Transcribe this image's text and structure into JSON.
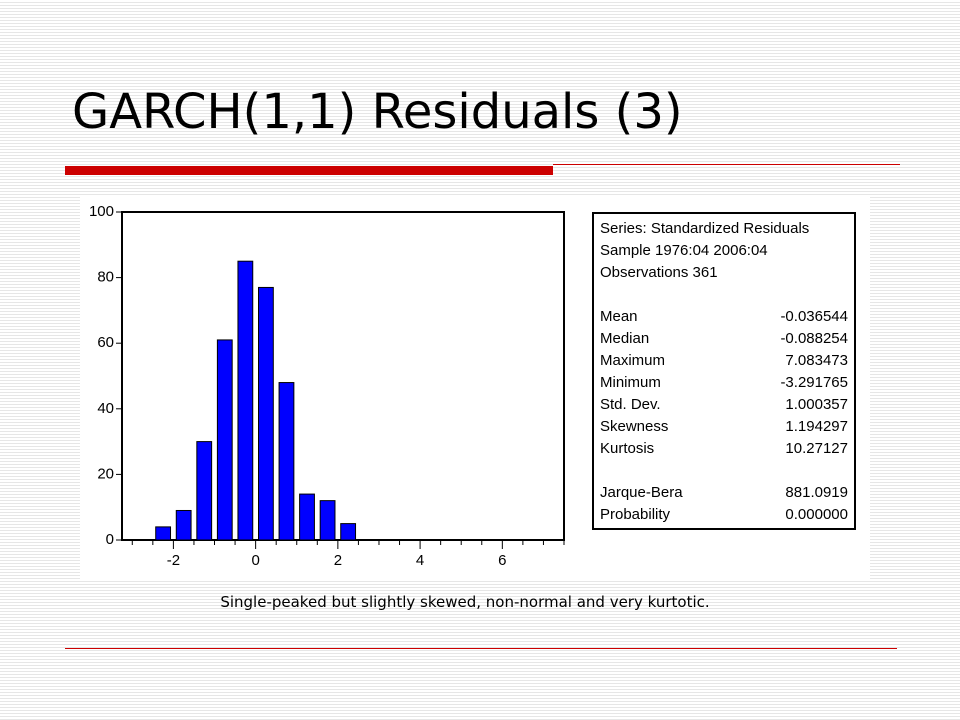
{
  "slide": {
    "title": "GARCH(1,1) Residuals (3)",
    "caption": "Single-peaked but slightly skewed, non-normal and very kurtotic.",
    "accent_color": "#cc0000"
  },
  "chart_data": {
    "type": "bar",
    "title": "",
    "xlabel": "",
    "ylabel": "",
    "bar_color": "#0000ff",
    "bin_width": 0.5,
    "bins": [
      {
        "center": -2.25,
        "value": 4
      },
      {
        "center": -1.75,
        "value": 9
      },
      {
        "center": -1.25,
        "value": 30
      },
      {
        "center": -0.75,
        "value": 61
      },
      {
        "center": -0.25,
        "value": 85
      },
      {
        "center": 0.25,
        "value": 77
      },
      {
        "center": 0.75,
        "value": 48
      },
      {
        "center": 1.25,
        "value": 14
      },
      {
        "center": 1.75,
        "value": 12
      },
      {
        "center": 2.25,
        "value": 5
      }
    ],
    "xlim": [
      -3.25,
      7.5
    ],
    "ylim": [
      0,
      100
    ],
    "x_ticks": [
      "-2",
      "0",
      "2",
      "4",
      "6"
    ],
    "y_ticks": [
      "0",
      "20",
      "40",
      "60",
      "80",
      "100"
    ],
    "grid": false
  },
  "stats": {
    "series_label": "Series: Standardized Residuals",
    "sample_label": "Sample 1976:04 2006:04",
    "observations_label": "Observations 361",
    "rows": [
      {
        "label": "Mean",
        "value": "-0.036544"
      },
      {
        "label": "Median",
        "value": "-0.088254"
      },
      {
        "label": "Maximum",
        "value": "7.083473"
      },
      {
        "label": "Minimum",
        "value": "-3.291765"
      },
      {
        "label": "Std. Dev.",
        "value": "1.000357"
      },
      {
        "label": "Skewness",
        "value": "1.194297"
      },
      {
        "label": "Kurtosis",
        "value": "10.27127"
      }
    ],
    "jb_rows": [
      {
        "label": "Jarque-Bera",
        "value": "881.0919"
      },
      {
        "label": "Probability",
        "value": "0.000000"
      }
    ]
  }
}
